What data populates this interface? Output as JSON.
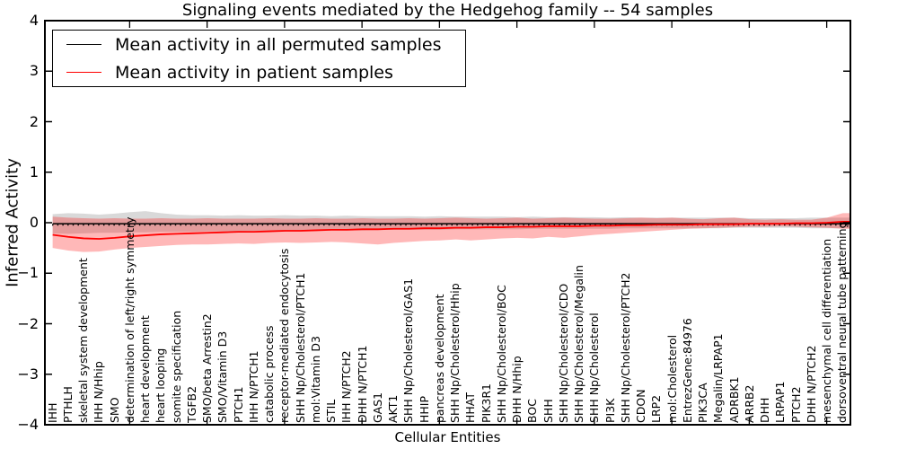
{
  "figure": {
    "title": "Signaling events mediated by the Hedgehog family -- 54 samples",
    "xlabel": "Cellular Entities",
    "ylabel": "Inferred Activity",
    "legend": [
      {
        "label": "Mean activity in all permuted samples",
        "color": "#000000"
      },
      {
        "label": "Mean activity in patient samples",
        "color": "#ff0000"
      }
    ]
  },
  "chart_data": {
    "type": "line",
    "title": "Signaling events mediated by the Hedgehog family -- 54 samples",
    "xlabel": "Cellular Entities",
    "ylabel": "Inferred Activity",
    "ylim": [
      -4,
      4
    ],
    "yticks": [
      4,
      3,
      2,
      1,
      0,
      -1,
      -2,
      -3,
      -4
    ],
    "grid": false,
    "legend_position": "upper left",
    "categories": [
      "IHH",
      "PTHLH",
      "skeletal system development",
      "IHH N/Hhip",
      "SMO",
      "determination of left/right symmetry",
      "heart development",
      "heart looping",
      "somite specification",
      "TGFB2",
      "SMO/beta Arrestin2",
      "SMO/Vitamin D3",
      "PTCH1",
      "IHH N/PTCH1",
      "catabolic process",
      "receptor-mediated endocytosis",
      "SHH Np/Cholesterol/PTCH1",
      "mol:Vitamin D3",
      "STIL",
      "IHH N/PTCH2",
      "DHH N/PTCH1",
      "GAS1",
      "AKT1",
      "SHH Np/Cholesterol/GAS1",
      "HHIP",
      "pancreas development",
      "SHH Np/Cholesterol/Hhip",
      "HHAT",
      "PIK3R1",
      "SHH Np/Cholesterol/BOC",
      "DHH N/Hhip",
      "BOC",
      "SHH",
      "SHH Np/Cholesterol/CDO",
      "SHH Np/Cholesterol/Megalin",
      "SHH Np/Cholesterol",
      "PI3K",
      "SHH Np/Cholesterol/PTCH2",
      "CDON",
      "LRP2",
      "mol:Cholesterol",
      "EntrezGene:84976",
      "PIK3CA",
      "Megalin/LRPAP1",
      "ADRBK1",
      "ARRB2",
      "DHH",
      "LRPAP1",
      "PTCH2",
      "DHH N/PTCH2",
      "mesenchymal cell differentiation",
      "dorsoventral neural tube patterning"
    ],
    "series": [
      {
        "name": "Mean activity in all permuted samples",
        "color": "#000000",
        "width": 1.5,
        "values": [
          -0.02,
          -0.02,
          -0.02,
          -0.02,
          -0.02,
          -0.02,
          -0.02,
          -0.02,
          -0.02,
          -0.02,
          -0.02,
          -0.02,
          -0.02,
          -0.02,
          -0.02,
          -0.02,
          -0.02,
          -0.02,
          -0.02,
          -0.02,
          -0.02,
          -0.02,
          -0.02,
          -0.02,
          -0.02,
          -0.02,
          -0.02,
          -0.02,
          -0.02,
          -0.02,
          -0.02,
          -0.02,
          -0.02,
          -0.02,
          -0.02,
          -0.02,
          -0.02,
          -0.02,
          -0.02,
          -0.02,
          -0.02,
          -0.02,
          -0.02,
          -0.02,
          -0.02,
          -0.02,
          -0.02,
          -0.02,
          -0.02,
          -0.02,
          -0.02,
          -0.02
        ]
      },
      {
        "name": "Mean activity in patient samples",
        "color": "#ff0000",
        "width": 1.8,
        "values": [
          -0.24,
          -0.28,
          -0.31,
          -0.32,
          -0.3,
          -0.27,
          -0.25,
          -0.23,
          -0.22,
          -0.21,
          -0.2,
          -0.19,
          -0.18,
          -0.18,
          -0.17,
          -0.16,
          -0.16,
          -0.15,
          -0.14,
          -0.14,
          -0.13,
          -0.13,
          -0.12,
          -0.12,
          -0.11,
          -0.11,
          -0.1,
          -0.1,
          -0.09,
          -0.09,
          -0.08,
          -0.08,
          -0.07,
          -0.07,
          -0.07,
          -0.06,
          -0.06,
          -0.05,
          -0.05,
          -0.04,
          -0.04,
          -0.04,
          -0.03,
          -0.03,
          -0.03,
          -0.02,
          -0.02,
          -0.02,
          -0.01,
          -0.01,
          0.0,
          0.02
        ]
      }
    ],
    "bands": [
      {
        "name": "permuted-samples-range",
        "fill": "rgba(0,0,0,0.15)",
        "upper": [
          0.17,
          0.19,
          0.18,
          0.16,
          0.18,
          0.21,
          0.23,
          0.19,
          0.16,
          0.15,
          0.15,
          0.14,
          0.15,
          0.14,
          0.14,
          0.15,
          0.14,
          0.14,
          0.13,
          0.14,
          0.13,
          0.13,
          0.13,
          0.13,
          0.12,
          0.13,
          0.12,
          0.12,
          0.12,
          0.12,
          0.11,
          0.12,
          0.11,
          0.11,
          0.11,
          0.11,
          0.1,
          0.11,
          0.1,
          0.1,
          0.1,
          0.1,
          0.1,
          0.1,
          0.1,
          0.09,
          0.09,
          0.09,
          0.09,
          0.1,
          0.1,
          0.1
        ],
        "lower": [
          -0.21,
          -0.22,
          -0.21,
          -0.2,
          -0.2,
          -0.19,
          -0.19,
          -0.18,
          -0.18,
          -0.18,
          -0.17,
          -0.17,
          -0.17,
          -0.16,
          -0.16,
          -0.16,
          -0.16,
          -0.15,
          -0.15,
          -0.15,
          -0.15,
          -0.14,
          -0.14,
          -0.14,
          -0.14,
          -0.14,
          -0.13,
          -0.13,
          -0.13,
          -0.13,
          -0.13,
          -0.12,
          -0.12,
          -0.12,
          -0.12,
          -0.12,
          -0.12,
          -0.11,
          -0.11,
          -0.11,
          -0.11,
          -0.11,
          -0.11,
          -0.11,
          -0.1,
          -0.1,
          -0.1,
          -0.1,
          -0.1,
          -0.11,
          -0.11,
          -0.11
        ]
      },
      {
        "name": "patient-samples-range",
        "fill": "rgba(255,0,0,0.28)",
        "upper": [
          0.12,
          0.1,
          0.09,
          0.08,
          0.09,
          0.08,
          0.08,
          0.09,
          0.08,
          0.08,
          0.09,
          0.08,
          0.08,
          0.08,
          0.09,
          0.08,
          0.08,
          0.09,
          0.08,
          0.08,
          0.09,
          0.08,
          0.08,
          0.09,
          0.08,
          0.09,
          0.1,
          0.09,
          0.08,
          0.09,
          0.1,
          0.08,
          0.09,
          0.1,
          0.09,
          0.08,
          0.08,
          0.09,
          0.1,
          0.09,
          0.1,
          0.08,
          0.07,
          0.09,
          0.1,
          0.07,
          0.06,
          0.07,
          0.06,
          0.06,
          0.1,
          0.19
        ],
        "lower": [
          -0.5,
          -0.55,
          -0.58,
          -0.57,
          -0.53,
          -0.5,
          -0.48,
          -0.46,
          -0.44,
          -0.43,
          -0.43,
          -0.42,
          -0.41,
          -0.42,
          -0.4,
          -0.39,
          -0.4,
          -0.39,
          -0.38,
          -0.39,
          -0.41,
          -0.43,
          -0.4,
          -0.38,
          -0.36,
          -0.35,
          -0.33,
          -0.35,
          -0.33,
          -0.31,
          -0.3,
          -0.31,
          -0.28,
          -0.3,
          -0.27,
          -0.24,
          -0.22,
          -0.2,
          -0.18,
          -0.16,
          -0.14,
          -0.12,
          -0.11,
          -0.1,
          -0.09,
          -0.08,
          -0.08,
          -0.07,
          -0.08,
          -0.09,
          -0.1,
          -0.12
        ]
      }
    ],
    "zero_reference_line": {
      "y": 0,
      "style": "dotted",
      "color": "#000000"
    }
  }
}
